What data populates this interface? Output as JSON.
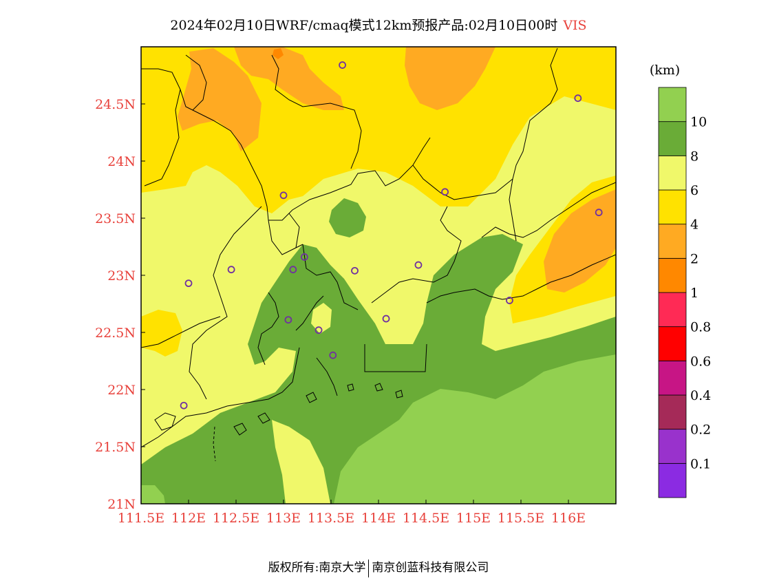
{
  "title": {
    "text": "2024年02月10日WRF/cmaq模式12km预报产品:02月10日00时",
    "variable": "VIS"
  },
  "map": {
    "lon_range": [
      111.5,
      116.5
    ],
    "lat_range": [
      21,
      25
    ],
    "x_ticks": [
      {
        "value": 111.5,
        "label": "111.5E"
      },
      {
        "value": 112,
        "label": "112E"
      },
      {
        "value": 112.5,
        "label": "112.5E"
      },
      {
        "value": 113,
        "label": "113E"
      },
      {
        "value": 113.5,
        "label": "113.5E"
      },
      {
        "value": 114,
        "label": "114E"
      },
      {
        "value": 114.5,
        "label": "114.5E"
      },
      {
        "value": 115,
        "label": "115E"
      },
      {
        "value": 115.5,
        "label": "115.5E"
      },
      {
        "value": 116,
        "label": "116E"
      }
    ],
    "y_ticks": [
      {
        "value": 21,
        "label": "21N"
      },
      {
        "value": 21.5,
        "label": "21.5N"
      },
      {
        "value": 22,
        "label": "22N"
      },
      {
        "value": 22.5,
        "label": "22.5N"
      },
      {
        "value": 23,
        "label": "23N"
      },
      {
        "value": 23.5,
        "label": "23.5N"
      },
      {
        "value": 24,
        "label": "24N"
      },
      {
        "value": 24.5,
        "label": "24.5N"
      }
    ],
    "stations": [
      {
        "lon": 113.62,
        "lat": 24.84
      },
      {
        "lon": 116.1,
        "lat": 24.55
      },
      {
        "lon": 113.0,
        "lat": 23.7
      },
      {
        "lon": 114.7,
        "lat": 23.73
      },
      {
        "lon": 116.32,
        "lat": 23.55
      },
      {
        "lon": 112.45,
        "lat": 23.05
      },
      {
        "lon": 112.0,
        "lat": 22.93
      },
      {
        "lon": 113.1,
        "lat": 23.05
      },
      {
        "lon": 113.22,
        "lat": 23.16
      },
      {
        "lon": 113.75,
        "lat": 23.04
      },
      {
        "lon": 114.42,
        "lat": 23.09
      },
      {
        "lon": 115.38,
        "lat": 22.78
      },
      {
        "lon": 113.05,
        "lat": 22.61
      },
      {
        "lon": 113.37,
        "lat": 22.52
      },
      {
        "lon": 114.08,
        "lat": 22.62
      },
      {
        "lon": 113.52,
        "lat": 22.3
      },
      {
        "lon": 111.95,
        "lat": 21.86
      }
    ],
    "vis_colors": {
      "lt1": "#ff8800",
      "c1_2": "#ffaa22",
      "c2_4": "#ffe200",
      "c4_6": "#f0f86a",
      "c6_8": "#6aac37",
      "c8_10": "#92d050",
      "station": "#7030a0"
    }
  },
  "colorbar": {
    "unit": "(km)",
    "bins": [
      {
        "color": "#8b2be2"
      },
      {
        "color": "#9932cc"
      },
      {
        "color": "#a52a58"
      },
      {
        "color": "#c71585"
      },
      {
        "color": "#ff0000"
      },
      {
        "color": "#ff2a55"
      },
      {
        "color": "#ff8800"
      },
      {
        "color": "#ffaa22"
      },
      {
        "color": "#ffe200"
      },
      {
        "color": "#f0f86a"
      },
      {
        "color": "#6aac37"
      },
      {
        "color": "#92d050"
      }
    ],
    "labels": [
      "0.1",
      "0.2",
      "0.4",
      "0.6",
      "0.8",
      "1",
      "2",
      "4",
      "6",
      "8",
      "10"
    ]
  },
  "footer": {
    "left": "版权所有:南京大学",
    "right": "南京创蓝科技有限公司"
  }
}
